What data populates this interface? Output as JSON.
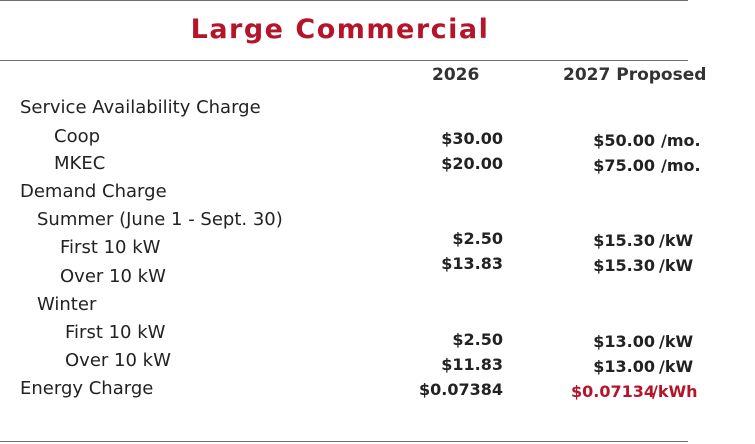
{
  "title": "Large Commercial",
  "columns": {
    "col1": "2026",
    "col2": "2027 Proposed"
  },
  "labels": {
    "service": "Service Availability Charge",
    "coop": "Coop",
    "mkec": "MKEC",
    "demand": "Demand Charge",
    "summer": "Summer (June 1 - Sept. 30)",
    "summer_first": "First 10 kW",
    "summer_over": "Over 10 kW",
    "winter": "Winter",
    "winter_first": "First 10 kW",
    "winter_over": "Over 10 kW",
    "energy": "Energy Charge"
  },
  "values_2026": {
    "coop": "$30.00",
    "mkec": "$20.00",
    "summer_first": "$2.50",
    "summer_over": "$13.83",
    "winter_first": "$2.50",
    "winter_over": "$11.83",
    "energy": "$0.07384"
  },
  "values_2027": {
    "coop": "$50.00",
    "mkec": "$75.00",
    "summer_first": "$15.30",
    "summer_over": "$15.30",
    "winter_first": "$13.00",
    "winter_over": "$13.00",
    "energy": "$0.07134"
  },
  "units": {
    "coop": "/mo.",
    "mkec": "/mo.",
    "summer_first": "/kW",
    "summer_over": "/kW",
    "winter_first": "/kW",
    "winter_over": "/kW",
    "energy": "/kWh"
  },
  "colors": {
    "accent": "#b5152b",
    "text": "#222222",
    "rule": "#6f6f6f"
  }
}
